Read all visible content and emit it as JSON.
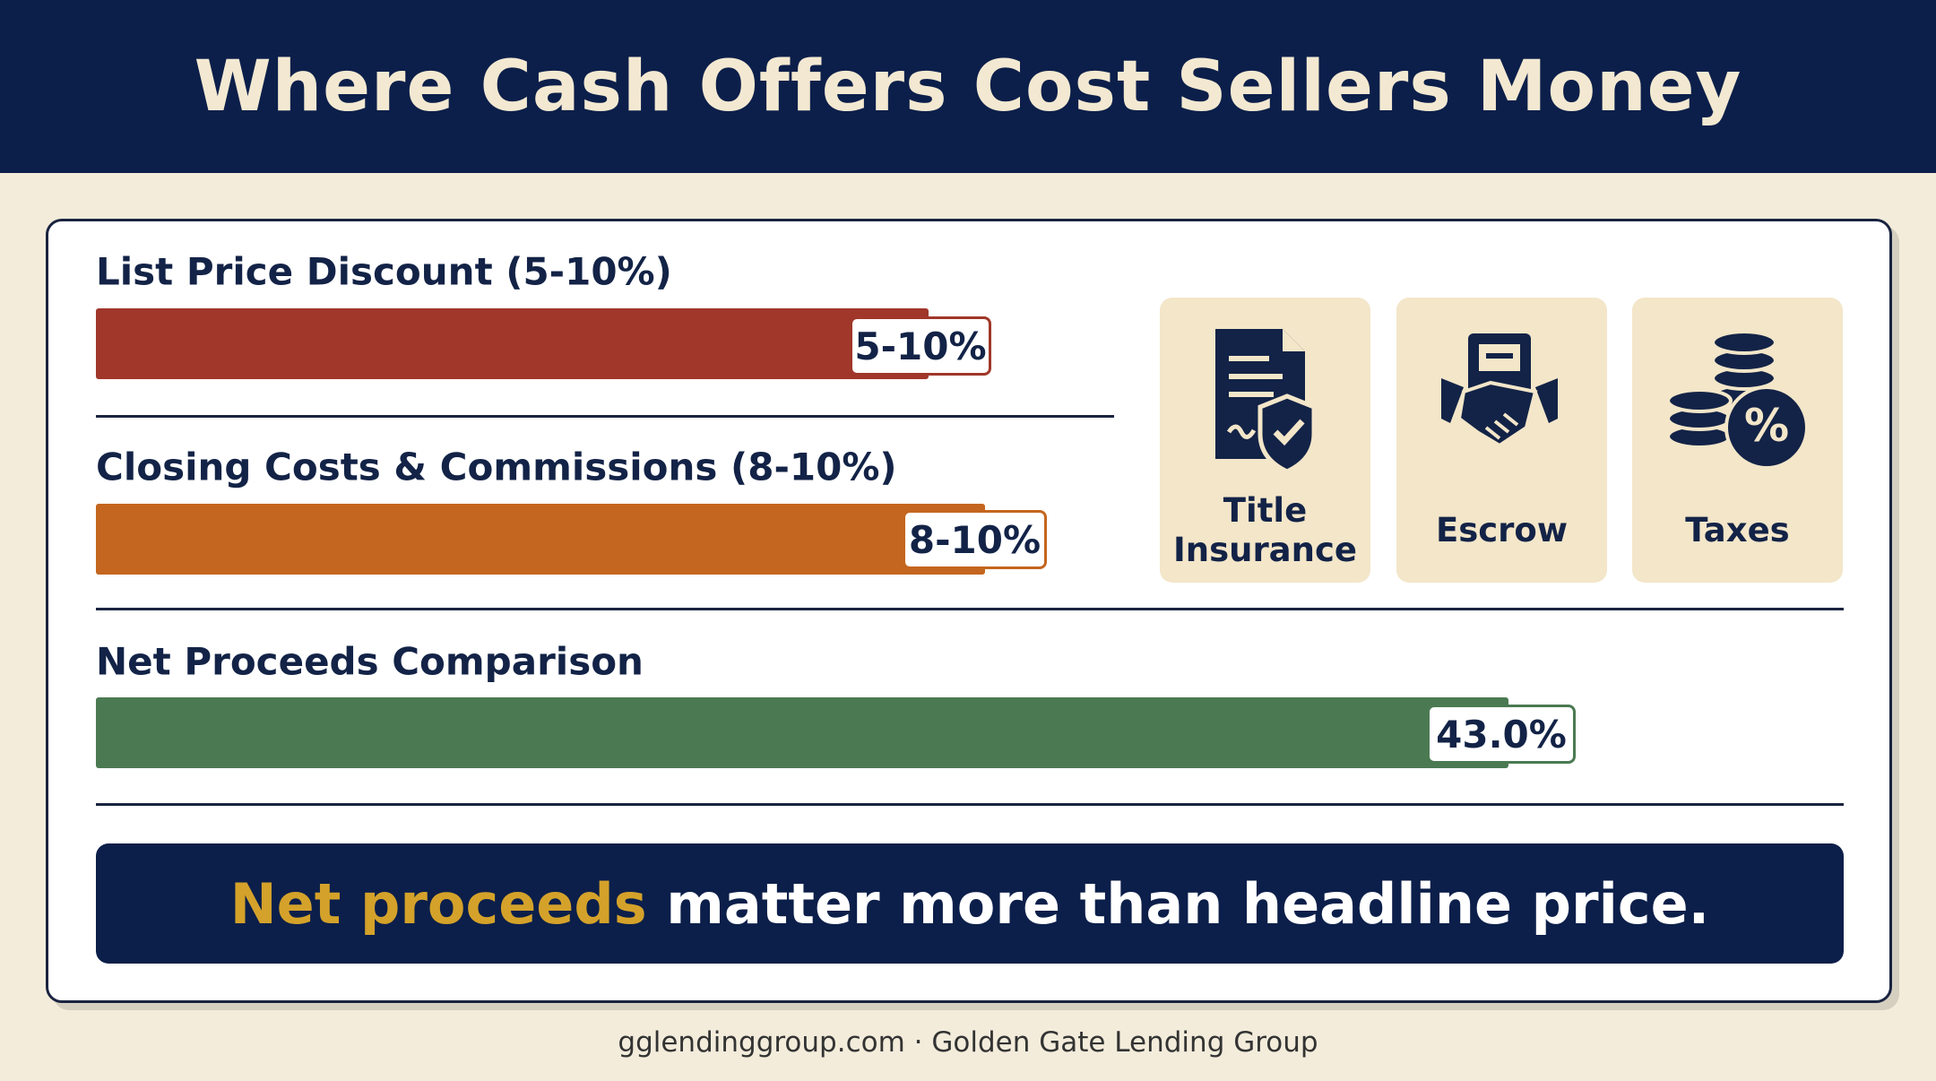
{
  "header": {
    "title": "Where Cash Offers Cost Sellers Money"
  },
  "sections": [
    {
      "label": "List Price Discount (5-10%)",
      "value_label": "5-10%"
    },
    {
      "label": "Closing Costs & Commissions (8-10%)",
      "value_label": "8-10%"
    },
    {
      "label": "Net Proceeds Comparison",
      "value_label": "43.0%"
    }
  ],
  "icons": [
    {
      "label": "Title Insurance"
    },
    {
      "label": "Escrow"
    },
    {
      "label": "Taxes"
    }
  ],
  "banner": {
    "highlight": "Net proceeds",
    "text": "matter more than headline price."
  },
  "footer": {
    "text": "gglendinggroup.com · Golden Gate Lending Group"
  }
}
